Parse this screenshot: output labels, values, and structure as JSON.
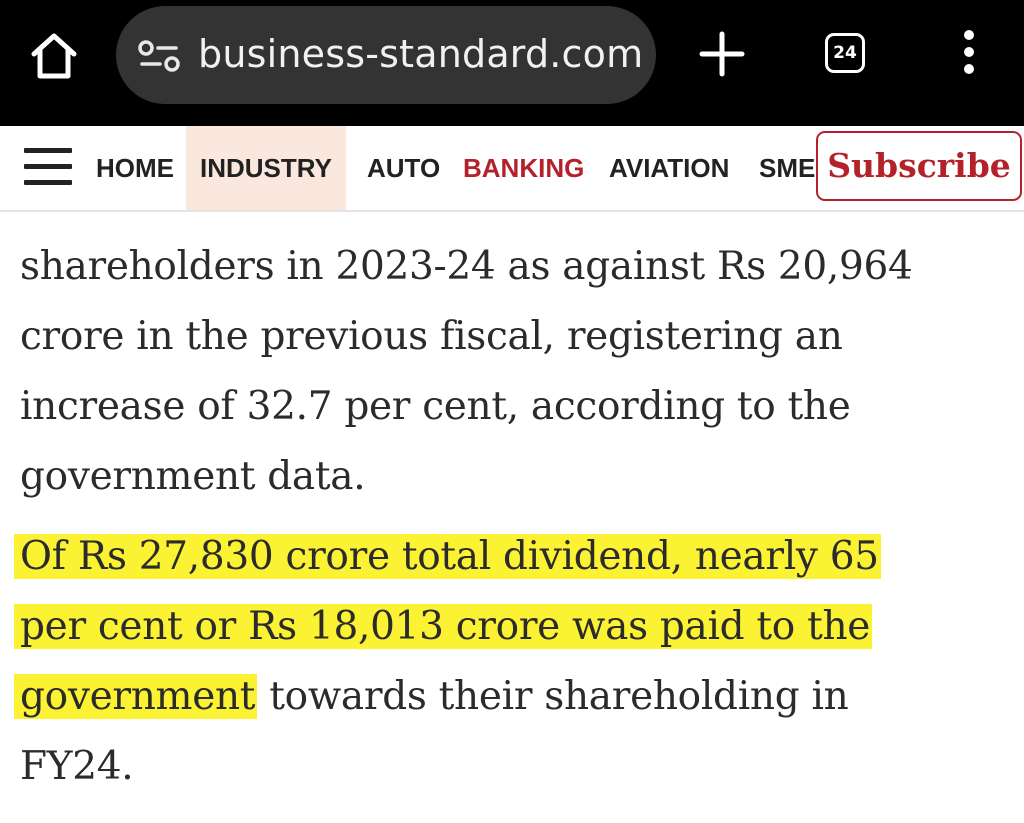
{
  "browser": {
    "url": "business-standard.com",
    "tab_count": "24",
    "icons": {
      "home": "home-icon",
      "site_settings": "site-settings-icon",
      "new_tab": "plus-icon",
      "tabs": "tab-switcher-icon",
      "menu": "more-vertical-icon"
    }
  },
  "nav": {
    "items": [
      "HOME",
      "INDUSTRY",
      "AUTO",
      "BANKING",
      "AVIATION",
      "SME"
    ],
    "active": "INDUSTRY",
    "subscribe_label": "Subscribe",
    "menu_icon": "hamburger-menu-icon"
  },
  "article": {
    "para1_lines": [
      "shareholders in 2023-24 as against Rs 20,964",
      "crore in the previous fiscal, registering an",
      "increase of 32.7 per cent, according to the",
      "government data."
    ],
    "para2": {
      "hl_line1": "Of Rs 27,830 crore total dividend, nearly 65",
      "hl_line2": "per cent or Rs 18,013 crore was paid to the",
      "hl_line3": "government",
      "rest_line3": " towards their shareholding in",
      "line4": "FY24."
    }
  },
  "colors": {
    "highlight": "#fbf233",
    "brand_red": "#b3222a",
    "active_tab_bg": "#fae8de"
  }
}
